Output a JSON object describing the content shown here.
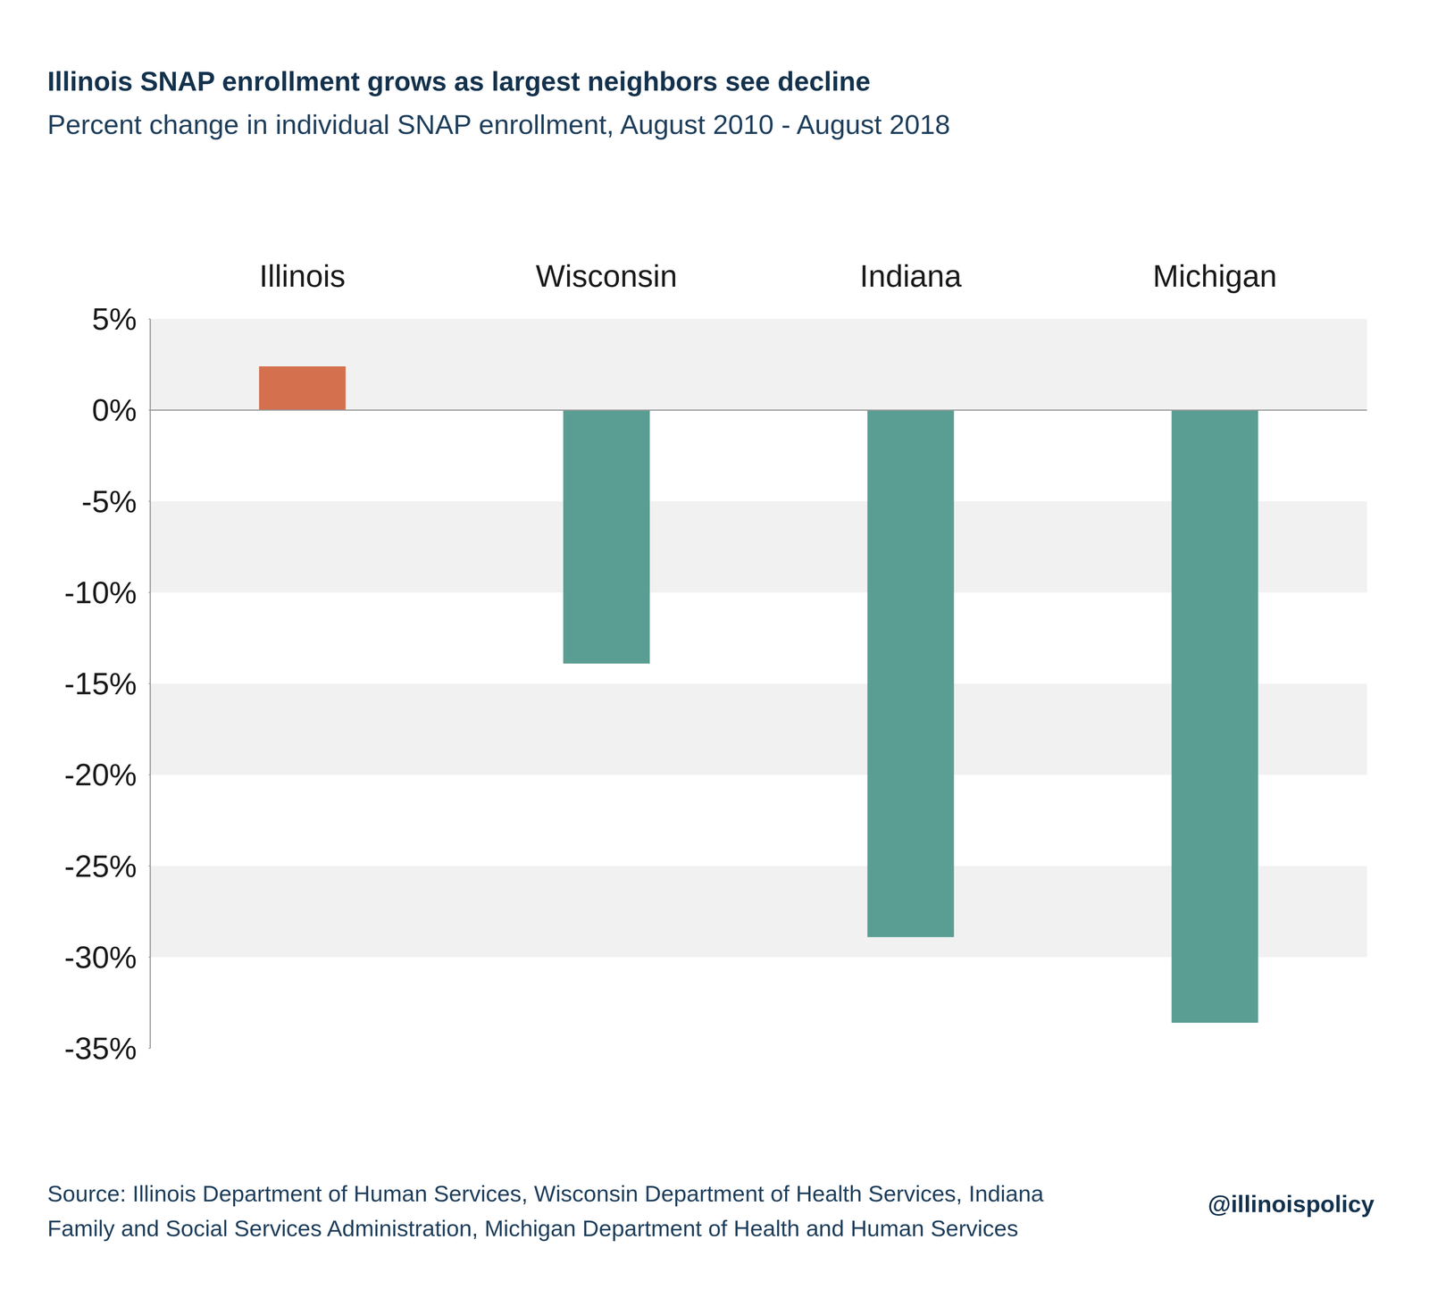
{
  "chart_data": {
    "type": "bar",
    "title": "Illinois SNAP enrollment grows as largest neighbors see decline",
    "subtitle": "Percent change in individual SNAP enrollment, August 2010 - August 2018",
    "categories": [
      "Illinois",
      "Wisconsin",
      "Indiana",
      "Michigan"
    ],
    "values": [
      2.4,
      -13.9,
      -28.9,
      -33.6
    ],
    "colors": [
      "#d4704e",
      "#5a9e93",
      "#5a9e93",
      "#5a9e93"
    ],
    "ylim": [
      -35,
      5
    ],
    "yticks": [
      {
        "value": 5,
        "label": "5%"
      },
      {
        "value": 0,
        "label": "0%"
      },
      {
        "value": -5,
        "label": "-5%"
      },
      {
        "value": -10,
        "label": "-10%"
      },
      {
        "value": -15,
        "label": "-15%"
      },
      {
        "value": -20,
        "label": "-20%"
      },
      {
        "value": -25,
        "label": "-25%"
      },
      {
        "value": -30,
        "label": "-30%"
      },
      {
        "value": -35,
        "label": "-35%"
      }
    ],
    "grid": true,
    "source": "Source: Illinois Department of Human Services, Wisconsin Department of Health Services, Indiana Family and Social Services Administration, Michigan Department of Health and Human Services",
    "annotations": [
      "@illinoispolicy"
    ]
  }
}
